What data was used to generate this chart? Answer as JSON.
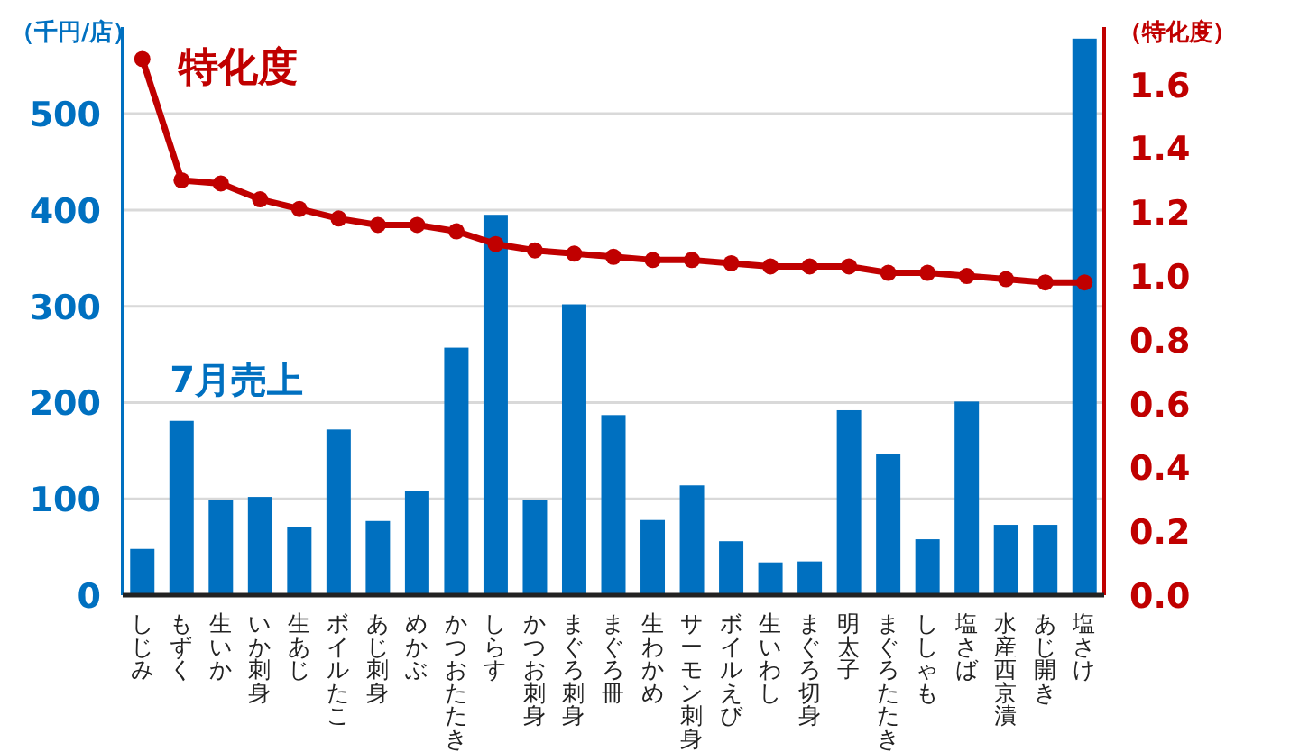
{
  "chart_data": {
    "type": "bar",
    "ylabel": "（千円/店）",
    "y2label": "（特化度）",
    "categories": [
      "しじみ",
      "もずく",
      "生いか",
      "いか刺身",
      "生あじ",
      "ボイルたこ",
      "あじ刺身",
      "めかぶ",
      "かつおたたき",
      "しらす",
      "かつお刺身",
      "まぐろ刺身",
      "まぐろ冊",
      "生わかめ",
      "サーモン刺身",
      "ボイルえび",
      "生いわし",
      "まぐろ切身",
      "明太子",
      "まぐろたたき",
      "ししゃも",
      "塩さば",
      "水産西京漬",
      "あじ開き",
      "塩さけ"
    ],
    "series": [
      {
        "name": "7月売上",
        "type": "bar",
        "color": "#0070c0",
        "values": [
          48,
          181,
          99,
          102,
          71,
          172,
          77,
          108,
          257,
          395,
          99,
          302,
          187,
          78,
          114,
          56,
          34,
          35,
          192,
          147,
          58,
          201,
          73,
          73,
          578
        ]
      },
      {
        "name": "特化度",
        "type": "line",
        "axis": "y2",
        "color": "#c00000",
        "marker": "circle",
        "values": [
          1.68,
          1.3,
          1.29,
          1.24,
          1.21,
          1.18,
          1.16,
          1.16,
          1.14,
          1.1,
          1.08,
          1.07,
          1.06,
          1.05,
          1.05,
          1.04,
          1.03,
          1.03,
          1.03,
          1.01,
          1.01,
          1.0,
          0.99,
          0.98,
          0.98
        ]
      }
    ],
    "ylim": [
      0,
      590
    ],
    "yticks": [
      0,
      100,
      200,
      300,
      400,
      500
    ],
    "y2lim": [
      0,
      1.78
    ],
    "y2ticks": [
      {
        "value": 0,
        "label": "0.0"
      },
      {
        "value": 0.2,
        "label": "0.2"
      },
      {
        "value": 0.4,
        "label": "0.4"
      },
      {
        "value": 0.6,
        "label": "0.6"
      },
      {
        "value": 0.8,
        "label": "0.8"
      },
      {
        "value": 1,
        "label": "1.0"
      },
      {
        "value": 1.2,
        "label": "1.2"
      },
      {
        "value": 1.4,
        "label": "1.4"
      },
      {
        "value": 1.6,
        "label": "1.6"
      }
    ],
    "grid": "y",
    "legend": false
  }
}
